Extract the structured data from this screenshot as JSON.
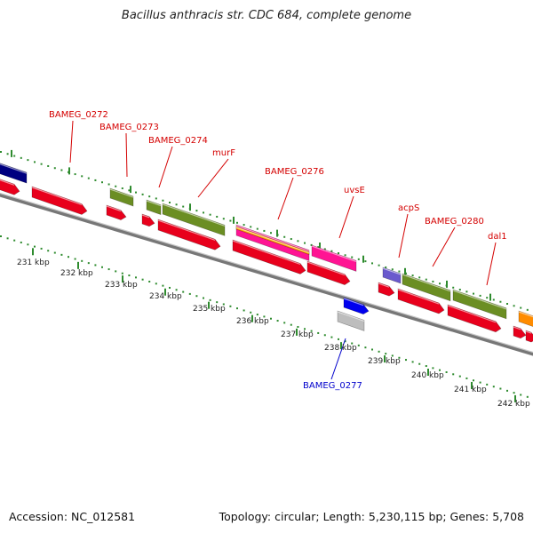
{
  "title": "Bacillus anthracis str. CDC 684, complete genome",
  "footer": {
    "accession": "Accession: NC_012581",
    "summary": "Topology: circular; Length: 5,230,115 bp; Genes: 5,708"
  },
  "colors": {
    "backbone": "#8c8c8c",
    "tick": "#2e8b2e",
    "label_forward": "#d40000",
    "label_reverse": "#0000cc"
  },
  "ruler": {
    "unit": "kbp",
    "labels": [
      "231 kbp",
      "232 kbp",
      "233 kbp",
      "234 kbp",
      "235 kbp",
      "236 kbp",
      "237 kbp",
      "238 kbp",
      "239 kbp",
      "240 kbp",
      "241 kbp",
      "242 kbp"
    ]
  },
  "gene_labels": [
    {
      "text": "BAMEG_0272",
      "strand": "forward"
    },
    {
      "text": "BAMEG_0273",
      "strand": "forward"
    },
    {
      "text": "BAMEG_0274",
      "strand": "forward"
    },
    {
      "text": "murF",
      "strand": "forward"
    },
    {
      "text": "BAMEG_0276",
      "strand": "forward"
    },
    {
      "text": "uvsE",
      "strand": "forward"
    },
    {
      "text": "acpS",
      "strand": "forward"
    },
    {
      "text": "BAMEG_0280",
      "strand": "forward"
    },
    {
      "text": "dal1",
      "strand": "forward"
    },
    {
      "text": "BAMEG_0277",
      "strand": "reverse"
    }
  ],
  "feature_colors": {
    "cds": "#e8001c",
    "gene_olive": "#6b8e23",
    "navy": "#000080",
    "magenta": "#ff1493",
    "purple": "#6a5acd",
    "orange": "#ff8c00",
    "blue": "#0000ee",
    "gray": "#bdbdbd"
  }
}
